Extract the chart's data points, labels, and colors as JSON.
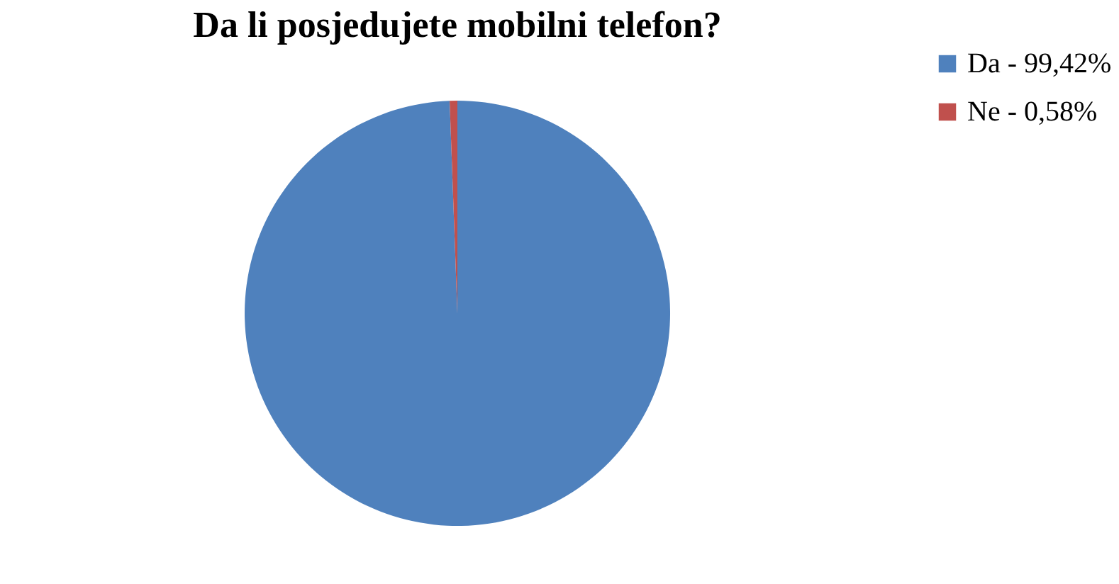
{
  "chart_data": {
    "type": "pie",
    "title": "Da li posjedujete mobilni telefon?",
    "categories": [
      "Da - 99,42%",
      "Ne - 0,58%"
    ],
    "values": [
      99.42,
      0.58
    ],
    "colors": [
      "#4f81bd",
      "#c0504d"
    ],
    "legend": "right"
  }
}
